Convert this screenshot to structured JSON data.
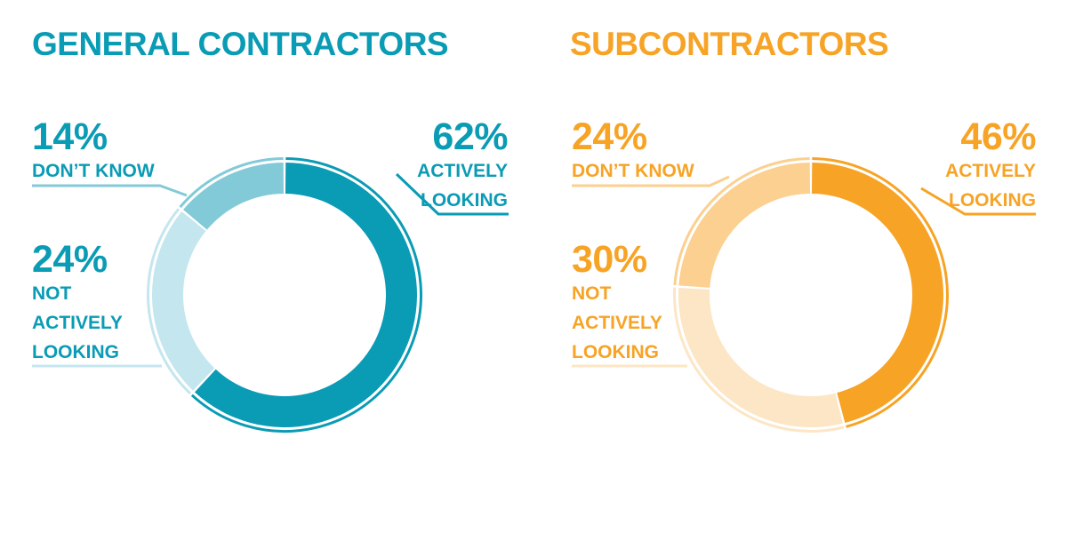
{
  "chart_data": [
    {
      "type": "donut",
      "title": "GENERAL CONTRACTORS",
      "title_color": "#0a9bb5",
      "slices": [
        {
          "pct": "62%",
          "label_lines": [
            "ACTIVELY",
            "LOOKING"
          ],
          "value": 62,
          "color": "#0a9bb5",
          "text_color": "#0a9bb5"
        },
        {
          "pct": "24%",
          "label_lines": [
            "NOT",
            "ACTIVELY",
            "LOOKING"
          ],
          "value": 24,
          "color": "#c4e6ee",
          "text_color": "#0a9bb5"
        },
        {
          "pct": "14%",
          "label_lines": [
            "DON’T KNOW"
          ],
          "value": 14,
          "color": "#83cad8",
          "text_color": "#0a9bb5"
        }
      ]
    },
    {
      "type": "donut",
      "title": "SUBCONTRACTORS",
      "title_color": "#f7a325",
      "slices": [
        {
          "pct": "46%",
          "label_lines": [
            "ACTIVELY",
            "LOOKING"
          ],
          "value": 46,
          "color": "#f7a325",
          "text_color": "#f7a325"
        },
        {
          "pct": "30%",
          "label_lines": [
            "NOT",
            "ACTIVELY",
            "LOOKING"
          ],
          "value": 30,
          "color": "#fce6c5",
          "text_color": "#f7a325"
        },
        {
          "pct": "24%",
          "label_lines": [
            "DON’T KNOW"
          ],
          "value": 24,
          "color": "#fbd090",
          "text_color": "#f7a325"
        }
      ]
    }
  ]
}
